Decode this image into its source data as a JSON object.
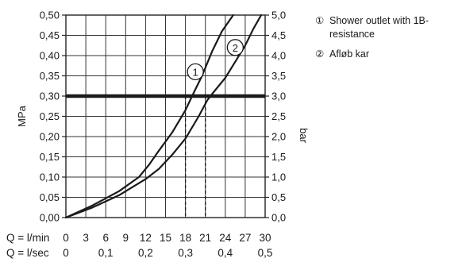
{
  "chart_data": {
    "type": "line",
    "x_units": "l/min",
    "xlim": [
      0,
      30
    ],
    "ylim_left": [
      0,
      0.5
    ],
    "ylim_right": [
      0,
      5.0
    ],
    "grid": true,
    "legend_position": "top-right",
    "left_axis_label": "MPa",
    "right_axis_label": "bar",
    "left_ticks": [
      "0,00",
      "0,05",
      "0,10",
      "0,15",
      "0,20",
      "0,25",
      "0,30",
      "0,35",
      "0,40",
      "0,45",
      "0,50"
    ],
    "right_ticks": [
      "0,0",
      "0,5",
      "1,0",
      "1,5",
      "2,0",
      "2,5",
      "3,0",
      "3,5",
      "4,0",
      "4,5",
      "5,0"
    ],
    "x_rows": [
      {
        "label": "Q = l/min",
        "ticks": [
          {
            "x": 0,
            "t": "0"
          },
          {
            "x": 3,
            "t": "3"
          },
          {
            "x": 6,
            "t": "6"
          },
          {
            "x": 9,
            "t": "9"
          },
          {
            "x": 12,
            "t": "12"
          },
          {
            "x": 15,
            "t": "15"
          },
          {
            "x": 18,
            "t": "18"
          },
          {
            "x": 21,
            "t": "21"
          },
          {
            "x": 24,
            "t": "24"
          },
          {
            "x": 27,
            "t": "27"
          },
          {
            "x": 30,
            "t": "30"
          }
        ]
      },
      {
        "label": "Q = l/sec",
        "ticks": [
          {
            "x": 0,
            "t": "0"
          },
          {
            "x": 6,
            "t": "0,1"
          },
          {
            "x": 12,
            "t": "0,2"
          },
          {
            "x": 18,
            "t": "0,3"
          },
          {
            "x": 24,
            "t": "0,4"
          },
          {
            "x": 30,
            "t": "0,5"
          }
        ]
      }
    ],
    "reference_line": {
      "y": 0.3
    },
    "drop_lines": [
      {
        "x": 18,
        "y": 0.3
      },
      {
        "x": 21,
        "y": 0.3
      }
    ],
    "series": [
      {
        "name": "Shower outlet with 1B-resistance",
        "marker": "1",
        "marker_at": [
          19.5,
          0.36
        ],
        "points": [
          [
            0,
            0
          ],
          [
            4,
            0.03
          ],
          [
            8,
            0.065
          ],
          [
            11,
            0.1
          ],
          [
            12.5,
            0.13
          ],
          [
            14,
            0.165
          ],
          [
            16,
            0.21
          ],
          [
            18,
            0.265
          ],
          [
            19,
            0.3
          ],
          [
            20.5,
            0.35
          ],
          [
            22,
            0.41
          ],
          [
            23.5,
            0.46
          ],
          [
            25.2,
            0.5
          ]
        ]
      },
      {
        "name": "Afløb kar",
        "marker": "2",
        "marker_at": [
          25.5,
          0.42
        ],
        "points": [
          [
            0,
            0
          ],
          [
            4,
            0.025
          ],
          [
            8,
            0.055
          ],
          [
            12,
            0.095
          ],
          [
            14,
            0.12
          ],
          [
            16,
            0.155
          ],
          [
            18,
            0.195
          ],
          [
            20,
            0.25
          ],
          [
            21.3,
            0.29
          ],
          [
            22,
            0.305
          ],
          [
            24,
            0.345
          ],
          [
            25.5,
            0.385
          ],
          [
            27,
            0.425
          ],
          [
            28.2,
            0.465
          ],
          [
            29.4,
            0.5
          ]
        ]
      }
    ]
  },
  "legend": [
    {
      "marker": "①",
      "text": "Shower outlet with 1B-resistance"
    },
    {
      "marker": "②",
      "text": "Afløb kar"
    }
  ]
}
